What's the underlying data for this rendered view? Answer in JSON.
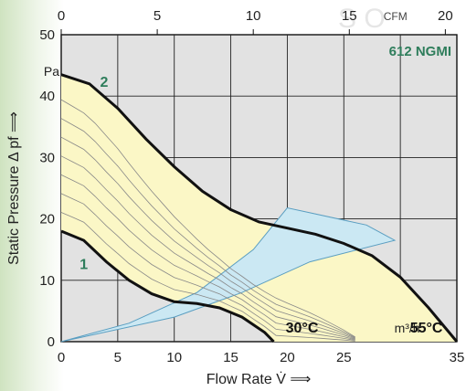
{
  "chart_data": {
    "type": "line",
    "model": "612 NGMI",
    "xlabel": "Flow Rate  V̇  ⟹",
    "ylabel": "Static Pressure  Δ pf  ⟹",
    "x_unit": "m³/h",
    "y_unit": "Pa",
    "x2_unit": "CFM",
    "xlim": [
      0,
      35
    ],
    "ylim": [
      0,
      50
    ],
    "x2lim": [
      0,
      20.6
    ],
    "x_ticks": [
      0,
      5,
      10,
      15,
      20,
      25,
      35
    ],
    "y_ticks": [
      0,
      10,
      20,
      30,
      40,
      50
    ],
    "x2_ticks": [
      0,
      5,
      10,
      15,
      20
    ],
    "grid": true,
    "series": [
      {
        "name": "2",
        "points": [
          [
            0,
            43.5
          ],
          [
            2.5,
            42
          ],
          [
            5,
            38
          ],
          [
            7.5,
            33
          ],
          [
            10,
            28.5
          ],
          [
            12.5,
            24.5
          ],
          [
            15,
            21.5
          ],
          [
            17.5,
            19.5
          ],
          [
            20,
            18.5
          ],
          [
            22.5,
            17.5
          ],
          [
            25,
            16
          ],
          [
            27.5,
            14
          ],
          [
            30,
            10.5
          ],
          [
            32.5,
            5.5
          ],
          [
            35,
            0
          ]
        ]
      },
      {
        "name": "1",
        "points": [
          [
            0,
            18
          ],
          [
            2,
            16.5
          ],
          [
            4,
            13
          ],
          [
            6,
            10
          ],
          [
            8,
            7.8
          ],
          [
            10,
            6.5
          ],
          [
            12,
            6.2
          ],
          [
            14,
            5.5
          ],
          [
            16,
            4
          ],
          [
            18,
            1.5
          ],
          [
            18.8,
            0
          ]
        ]
      }
    ],
    "annotations": [
      {
        "text": "30°C",
        "x": 21.3,
        "y": 1.5
      },
      {
        "text": "55°C",
        "x": 32.3,
        "y": 1.5
      }
    ],
    "watermark": "S O"
  }
}
